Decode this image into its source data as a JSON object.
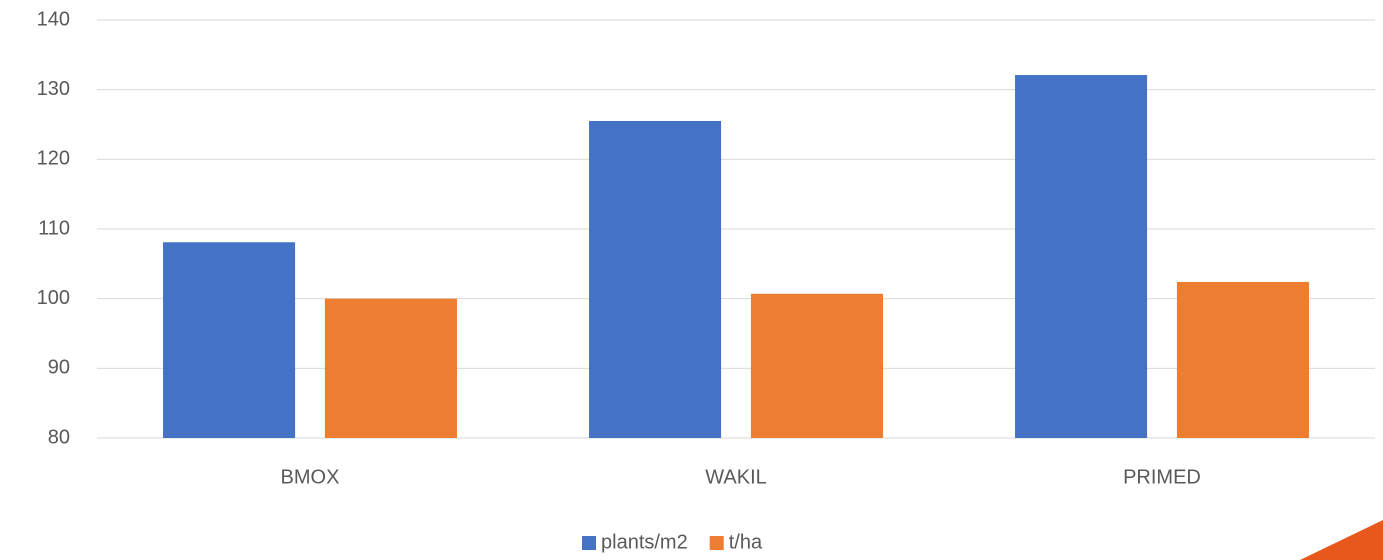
{
  "chart_data": {
    "type": "bar",
    "categories": [
      "BMOX",
      "WAKIL",
      "PRIMED"
    ],
    "series": [
      {
        "name": "plants/m2",
        "color": "#4472c4",
        "values": [
          108.1,
          125.5,
          132.1
        ]
      },
      {
        "name": "t/ha",
        "color": "#ed7d31",
        "values": [
          100,
          100.7,
          102.4
        ]
      }
    ],
    "ylim": [
      80,
      140
    ],
    "yticks": [
      80,
      90,
      100,
      110,
      120,
      130,
      140
    ],
    "grid": true,
    "legend": "bottom"
  }
}
